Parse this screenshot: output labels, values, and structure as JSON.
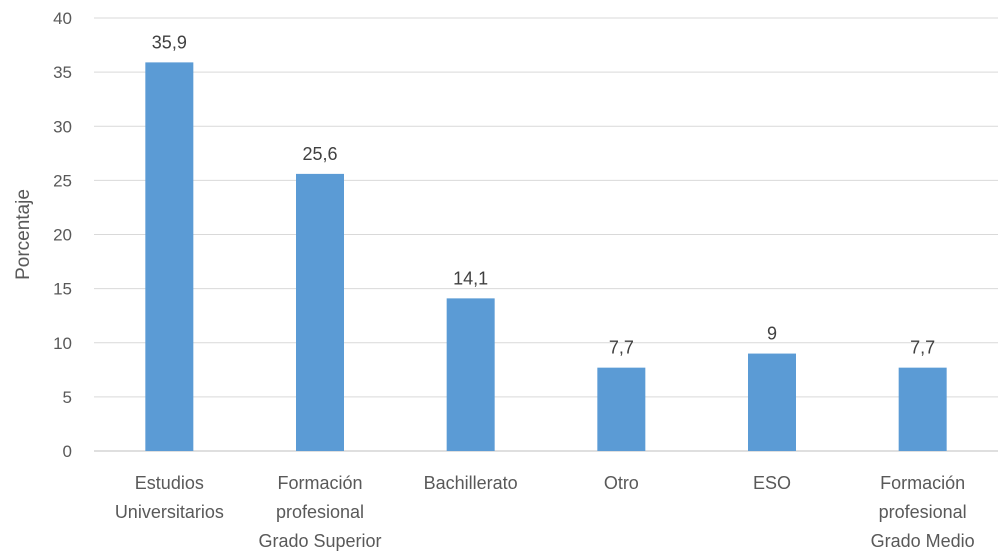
{
  "chart_data": {
    "type": "bar",
    "title": "",
    "xlabel": "",
    "ylabel": "Porcentaje",
    "categories": [
      [
        "Estudios",
        "Universitarios"
      ],
      [
        "Formación",
        "profesional",
        "Grado Superior"
      ],
      [
        "Bachillerato"
      ],
      [
        "Otro"
      ],
      [
        "ESO"
      ],
      [
        "Formación",
        "profesional",
        "Grado Medio"
      ]
    ],
    "values": [
      35.9,
      25.6,
      14.1,
      7.7,
      9,
      7.7
    ],
    "value_labels": [
      "35,9",
      "25,6",
      "14,1",
      "7,7",
      "9",
      "7,7"
    ],
    "ylim": [
      0,
      40
    ],
    "yticks": [
      0,
      5,
      10,
      15,
      20,
      25,
      30,
      35,
      40
    ],
    "grid": true,
    "legend": "none",
    "bar_color": "#5b9bd5"
  }
}
